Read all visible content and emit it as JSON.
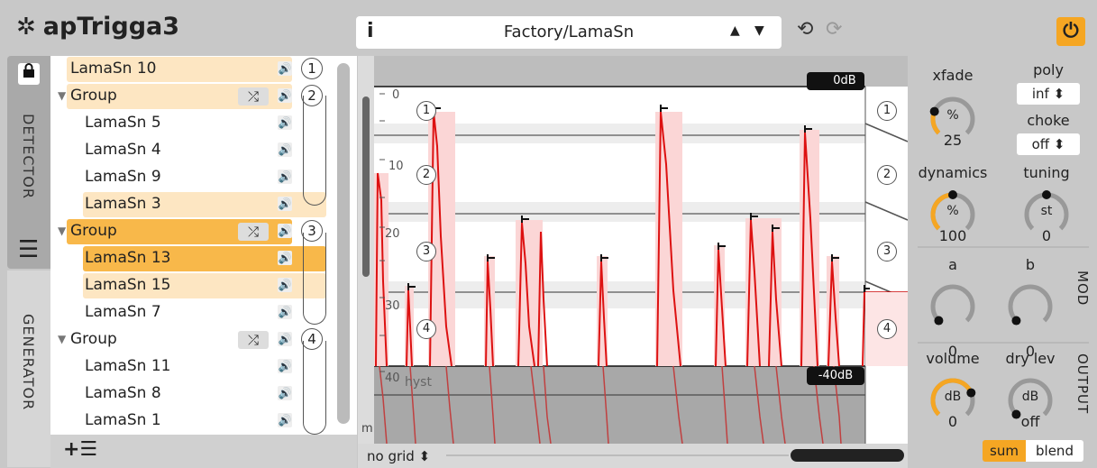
{
  "app": {
    "title": "apTrigga3"
  },
  "preset": {
    "info_label": "i",
    "name": "Factory/LamaSn",
    "up": "▲",
    "down": "▼",
    "undo": "⟲",
    "redo": "⟳"
  },
  "power": {
    "glyph": "⏻",
    "color": "#f5a623"
  },
  "tabs": {
    "detector": "DETECTOR",
    "generator": "GENERATOR",
    "lock": "🔒",
    "menu": "☰"
  },
  "list": {
    "items": [
      {
        "label": "LamaSn 10",
        "indent": 0,
        "highlight": "light",
        "group": false,
        "num": "1"
      },
      {
        "label": "Group",
        "indent": 0,
        "highlight": "light",
        "group": true,
        "num": "2"
      },
      {
        "label": "LamaSn 5",
        "indent": 1,
        "highlight": "none",
        "group": false,
        "num": ""
      },
      {
        "label": "LamaSn 4",
        "indent": 1,
        "highlight": "none",
        "group": false,
        "num": ""
      },
      {
        "label": "LamaSn 9",
        "indent": 1,
        "highlight": "none",
        "group": false,
        "num": ""
      },
      {
        "label": "LamaSn 3",
        "indent": 1,
        "highlight": "light",
        "group": false,
        "num": ""
      },
      {
        "label": "Group",
        "indent": 0,
        "highlight": "orange",
        "group": true,
        "num": "3"
      },
      {
        "label": "LamaSn 13",
        "indent": 1,
        "highlight": "orange",
        "group": false,
        "num": ""
      },
      {
        "label": "LamaSn 15",
        "indent": 1,
        "highlight": "light",
        "group": false,
        "num": ""
      },
      {
        "label": "LamaSn 7",
        "indent": 1,
        "highlight": "none",
        "group": false,
        "num": ""
      },
      {
        "label": "Group",
        "indent": 0,
        "highlight": "none",
        "group": true,
        "num": "4"
      },
      {
        "label": "LamaSn 11",
        "indent": 1,
        "highlight": "none",
        "group": false,
        "num": ""
      },
      {
        "label": "LamaSn 8",
        "indent": 1,
        "highlight": "none",
        "group": false,
        "num": ""
      },
      {
        "label": "LamaSn 1",
        "indent": 1,
        "highlight": "none",
        "group": false,
        "num": ""
      }
    ],
    "add_label": "+☰"
  },
  "graph": {
    "top_db_label": "0dB",
    "bottom_db_label": "-40dB",
    "scale_labels": [
      "0",
      "10",
      "20",
      "30",
      "40"
    ],
    "hyst_label": "hyst",
    "m_label": "m",
    "zone_nums": [
      "1",
      "2",
      "3",
      "4"
    ],
    "grid_label": "no grid ⬍"
  },
  "controls": {
    "xfade": {
      "label": "xfade",
      "unit": "%",
      "value": "25",
      "level": 0.25
    },
    "poly": {
      "label": "poly",
      "value": "inf ⬍"
    },
    "choke": {
      "label": "choke",
      "value": "off ⬍"
    },
    "dynamics": {
      "label": "dynamics",
      "unit": "%",
      "value": "100",
      "level": 0.5
    },
    "tuning": {
      "label": "tuning",
      "unit": "st",
      "value": "0"
    },
    "mod_a": {
      "label": "a",
      "value": "0"
    },
    "mod_b": {
      "label": "b",
      "value": "0"
    },
    "volume": {
      "label": "volume",
      "unit": "dB",
      "value": "0"
    },
    "drylev": {
      "label": "dry lev",
      "unit": "dB",
      "value": "off"
    },
    "mod_section": "MOD",
    "output_section": "OUTPUT",
    "sum": "sum",
    "blend": "blend"
  }
}
